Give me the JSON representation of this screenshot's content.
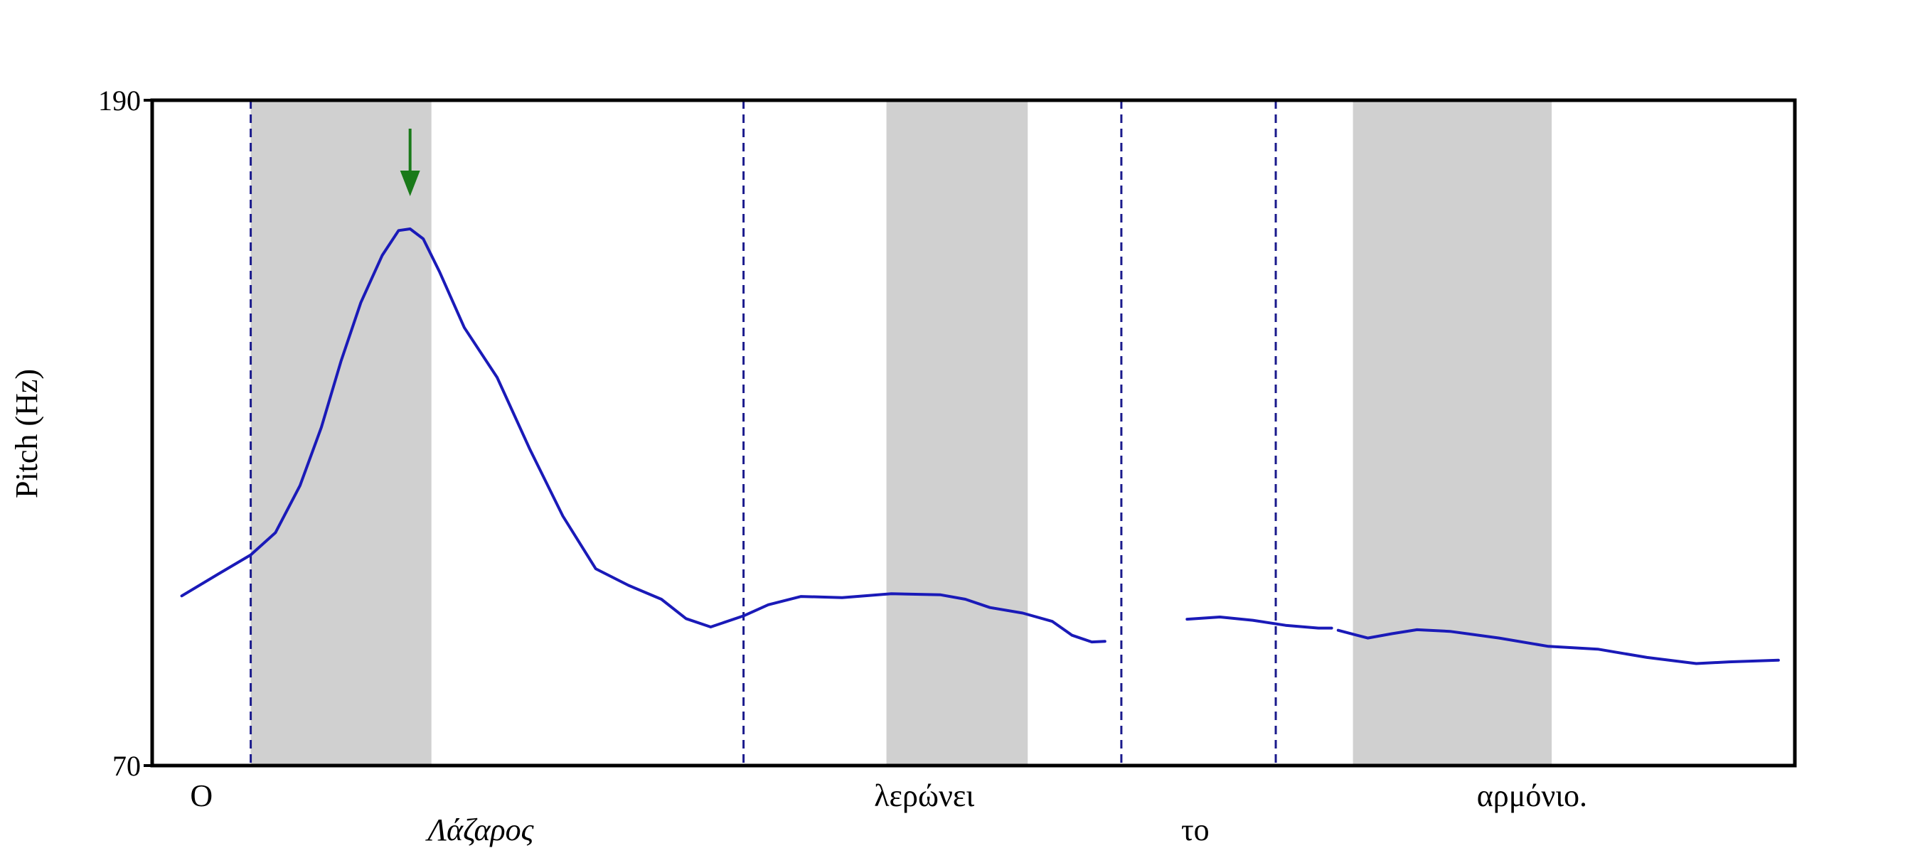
{
  "chart_data": {
    "type": "line",
    "ylabel": "Pitch (Hz)",
    "ylim": [
      70,
      190
    ],
    "yticks": [
      "70",
      "190"
    ],
    "xlim": [
      0,
      1
    ],
    "grid": false,
    "colors": {
      "line": "#1a1ab8",
      "boundary": "#1a1a8c",
      "shade": "#d0d0d0",
      "arrow": "#1a7a1a",
      "axis": "#000000"
    },
    "stressed_regions": [
      {
        "start": 0.06,
        "end": 0.17
      },
      {
        "start": 0.447,
        "end": 0.533
      },
      {
        "start": 0.731,
        "end": 0.852
      }
    ],
    "word_boundaries": [
      0.06,
      0.36,
      0.59,
      0.684
    ],
    "peak_marker": {
      "x": 0.157,
      "label": "",
      "icon": "down-arrow-icon"
    },
    "words": [
      {
        "text": "Ο",
        "x": 0.03,
        "row": 1,
        "italic": false
      },
      {
        "text": "Λάζαρος",
        "x": 0.2,
        "row": 2,
        "italic": true
      },
      {
        "text": "λερώνει",
        "x": 0.47,
        "row": 1,
        "italic": false
      },
      {
        "text": "το",
        "x": 0.635,
        "row": 2,
        "italic": false
      },
      {
        "text": "αρμόνιο.",
        "x": 0.84,
        "row": 1,
        "italic": false
      }
    ],
    "series": [
      {
        "segments": [
          [
            [
              0.018,
              100.6
            ],
            [
              0.04,
              104.5
            ],
            [
              0.06,
              108
            ],
            [
              0.075,
              112
            ],
            [
              0.09,
              120.5
            ],
            [
              0.103,
              131
            ],
            [
              0.115,
              143
            ],
            [
              0.127,
              153.5
            ],
            [
              0.14,
              162
            ],
            [
              0.15,
              166.5
            ],
            [
              0.157,
              166.8
            ],
            [
              0.165,
              165
            ],
            [
              0.175,
              159
            ],
            [
              0.19,
              149
            ],
            [
              0.21,
              140
            ],
            [
              0.23,
              127
            ],
            [
              0.25,
              115
            ],
            [
              0.27,
              105.5
            ],
            [
              0.29,
              102.5
            ],
            [
              0.31,
              100
            ],
            [
              0.325,
              96.5
            ],
            [
              0.34,
              95
            ],
            [
              0.36,
              97
            ],
            [
              0.375,
              99
            ],
            [
              0.395,
              100.5
            ],
            [
              0.42,
              100.3
            ],
            [
              0.45,
              101
            ],
            [
              0.48,
              100.8
            ],
            [
              0.495,
              100
            ],
            [
              0.51,
              98.5
            ],
            [
              0.53,
              97.5
            ],
            [
              0.548,
              96
            ],
            [
              0.56,
              93.5
            ],
            [
              0.572,
              92.3
            ],
            [
              0.58,
              92.4
            ]
          ],
          [
            [
              0.63,
              96.4
            ],
            [
              0.65,
              96.8
            ],
            [
              0.67,
              96.2
            ],
            [
              0.69,
              95.3
            ],
            [
              0.71,
              94.8
            ],
            [
              0.718,
              94.8
            ]
          ],
          [
            [
              0.722,
              94.4
            ],
            [
              0.74,
              93
            ],
            [
              0.755,
              93.8
            ],
            [
              0.77,
              94.5
            ],
            [
              0.79,
              94.2
            ],
            [
              0.82,
              93
            ],
            [
              0.85,
              91.5
            ],
            [
              0.88,
              91
            ],
            [
              0.91,
              89.5
            ],
            [
              0.94,
              88.4
            ],
            [
              0.96,
              88.7
            ],
            [
              0.99,
              89
            ]
          ]
        ]
      }
    ]
  }
}
